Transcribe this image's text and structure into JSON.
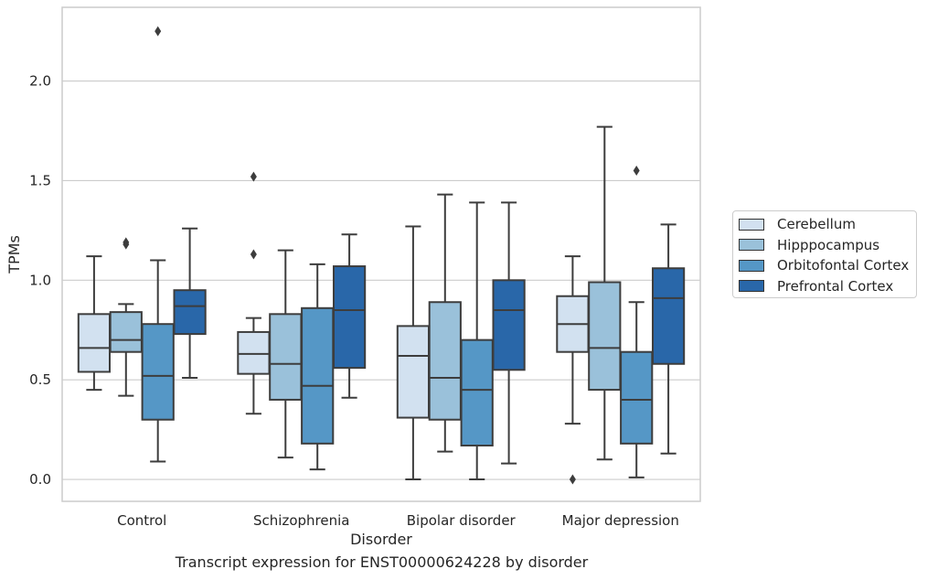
{
  "caption": "Transcript expression for ENST00000624228 by disorder",
  "chart_data": {
    "type": "box",
    "title": "",
    "xlabel": "Disorder",
    "ylabel": "TPMs",
    "ylim": [
      -0.11,
      2.37
    ],
    "yticks": [
      0.0,
      0.5,
      1.0,
      1.5,
      2.0
    ],
    "ytick_labels": [
      "0.0",
      "0.5",
      "1.0",
      "1.5",
      "2.0"
    ],
    "grid": "horizontal",
    "legend_position": "right",
    "categories": [
      "Control",
      "Schizophrenia",
      "Bipolar disorder",
      "Major depression"
    ],
    "series": [
      {
        "name": "Cerebellum",
        "color": "#d2e1f0",
        "boxes": [
          {
            "whisker_low": 0.45,
            "q1": 0.54,
            "median": 0.66,
            "q3": 0.83,
            "whisker_high": 1.12,
            "outliers": []
          },
          {
            "whisker_low": 0.33,
            "q1": 0.53,
            "median": 0.63,
            "q3": 0.74,
            "whisker_high": 0.81,
            "outliers": [
              1.13,
              1.52
            ]
          },
          {
            "whisker_low": 0.0,
            "q1": 0.31,
            "median": 0.62,
            "q3": 0.77,
            "whisker_high": 1.27,
            "outliers": []
          },
          {
            "whisker_low": 0.28,
            "q1": 0.64,
            "median": 0.78,
            "q3": 0.92,
            "whisker_high": 1.12,
            "outliers": [
              0.0
            ]
          }
        ]
      },
      {
        "name": "Hipppocampus",
        "color": "#9ac1da",
        "boxes": [
          {
            "whisker_low": 0.42,
            "q1": 0.64,
            "median": 0.7,
            "q3": 0.84,
            "whisker_high": 0.88,
            "outliers": [
              1.18,
              1.19
            ]
          },
          {
            "whisker_low": 0.11,
            "q1": 0.4,
            "median": 0.58,
            "q3": 0.83,
            "whisker_high": 1.15,
            "outliers": []
          },
          {
            "whisker_low": 0.14,
            "q1": 0.3,
            "median": 0.51,
            "q3": 0.89,
            "whisker_high": 1.43,
            "outliers": []
          },
          {
            "whisker_low": 0.1,
            "q1": 0.45,
            "median": 0.66,
            "q3": 0.99,
            "whisker_high": 1.77,
            "outliers": []
          }
        ]
      },
      {
        "name": "Orbitofontal Cortex",
        "color": "#5597c6",
        "boxes": [
          {
            "whisker_low": 0.09,
            "q1": 0.3,
            "median": 0.52,
            "q3": 0.78,
            "whisker_high": 1.1,
            "outliers": [
              2.25
            ]
          },
          {
            "whisker_low": 0.05,
            "q1": 0.18,
            "median": 0.47,
            "q3": 0.86,
            "whisker_high": 1.08,
            "outliers": []
          },
          {
            "whisker_low": 0.0,
            "q1": 0.17,
            "median": 0.45,
            "q3": 0.7,
            "whisker_high": 1.39,
            "outliers": []
          },
          {
            "whisker_low": 0.01,
            "q1": 0.18,
            "median": 0.4,
            "q3": 0.64,
            "whisker_high": 0.89,
            "outliers": [
              1.55
            ]
          }
        ]
      },
      {
        "name": "Prefrontal Cortex",
        "color": "#2967a9",
        "boxes": [
          {
            "whisker_low": 0.51,
            "q1": 0.73,
            "median": 0.87,
            "q3": 0.95,
            "whisker_high": 1.26,
            "outliers": []
          },
          {
            "whisker_low": 0.41,
            "q1": 0.56,
            "median": 0.85,
            "q3": 1.07,
            "whisker_high": 1.23,
            "outliers": []
          },
          {
            "whisker_low": 0.08,
            "q1": 0.55,
            "median": 0.85,
            "q3": 1.0,
            "whisker_high": 1.39,
            "outliers": []
          },
          {
            "whisker_low": 0.13,
            "q1": 0.58,
            "median": 0.91,
            "q3": 1.06,
            "whisker_high": 1.28,
            "outliers": []
          }
        ]
      }
    ]
  }
}
